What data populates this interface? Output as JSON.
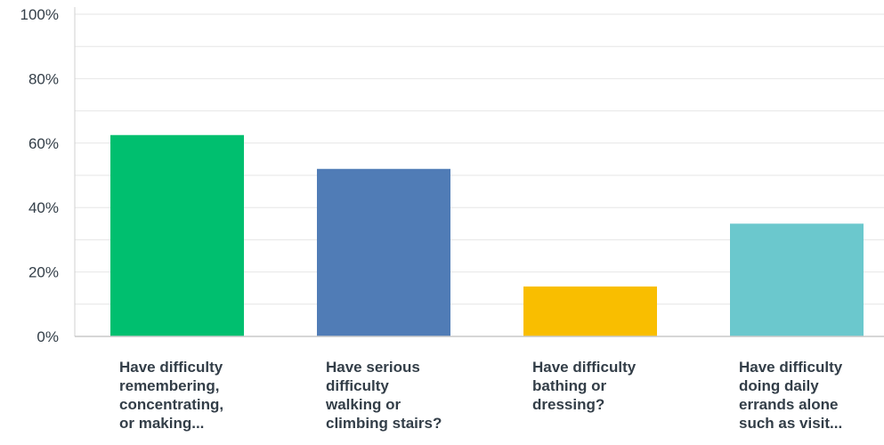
{
  "chart_data": {
    "type": "bar",
    "categories": [
      "Have difficulty\nremembering,\nconcentrating,\nor making...",
      "Have serious\ndifficulty\nwalking or\nclimbing stairs?",
      "Have difficulty\nbathing or\ndressing?",
      "Have difficulty\ndoing daily\nerrands alone\nsuch as visit..."
    ],
    "values": [
      62.5,
      52,
      15.5,
      35
    ],
    "colors": [
      "#00bf6f",
      "#507cb6",
      "#f9be00",
      "#6bc8cd"
    ],
    "ylim": [
      0,
      100
    ],
    "yticks": [
      0,
      20,
      40,
      60,
      80,
      100
    ],
    "ytick_labels": [
      "0%",
      "20%",
      "40%",
      "60%",
      "80%",
      "100%"
    ],
    "grid": true,
    "legend": "none"
  }
}
